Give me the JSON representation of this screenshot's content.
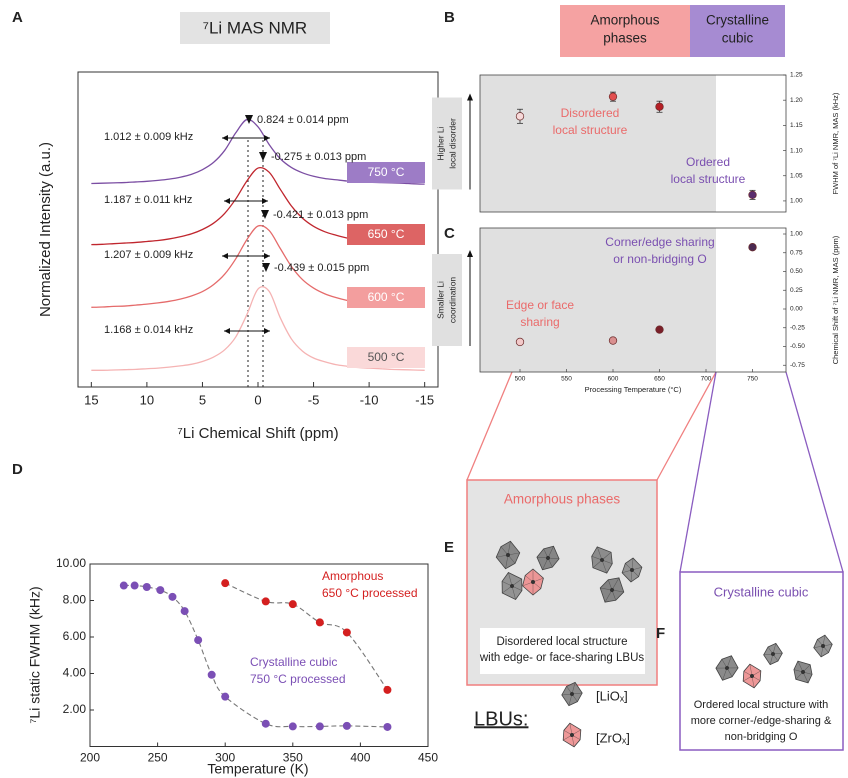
{
  "panel_labels": [
    "A",
    "B",
    "C",
    "D",
    "E",
    "F"
  ],
  "chart_data": [
    {
      "type": "line",
      "title": "⁷Li MAS NMR",
      "xlabel": "⁷Li Chemical Shift (ppm)",
      "ylabel": "Normalized Intensity (a.u.)",
      "x": [
        15,
        14,
        13,
        12,
        11,
        10,
        9,
        8,
        7,
        6,
        5,
        4,
        3,
        2,
        1,
        0,
        -1,
        -2,
        -3,
        -4,
        -5,
        -6,
        -7,
        -8,
        -9,
        -10,
        -11,
        -12,
        -13,
        -14,
        -15
      ],
      "xlim": [
        16.2,
        -16.2
      ],
      "xticks": [
        15,
        10,
        5,
        0,
        -5,
        -10,
        -15
      ],
      "ylim": [
        0,
        10
      ],
      "series": [
        {
          "name": "750 °C",
          "color": "#7b4ea3",
          "label_color": "#9d7cc6",
          "peak_label": "0.824 ± 0.014 ppm",
          "width_label": "1.012 ± 0.009 kHz",
          "values": [
            6.46,
            6.47,
            6.48,
            6.49,
            6.51,
            6.53,
            6.56,
            6.6,
            6.66,
            6.75,
            6.9,
            7.13,
            7.51,
            8.07,
            8.49,
            8.26,
            7.7,
            7.25,
            6.97,
            6.8,
            6.69,
            6.62,
            6.58,
            6.54,
            6.52,
            6.5,
            6.49,
            6.48,
            6.47,
            6.45,
            6.44
          ]
        },
        {
          "name": "650 °C",
          "color": "#c0262e",
          "label_color": "#dd6464",
          "peak_label": "-0.275 ± 0.013 ppm",
          "width_label": "1.187 ± 0.011 kHz",
          "values": [
            4.52,
            4.53,
            4.55,
            4.57,
            4.59,
            4.62,
            4.65,
            4.7,
            4.77,
            4.86,
            5.0,
            5.2,
            5.51,
            5.97,
            6.54,
            6.95,
            6.82,
            6.28,
            5.75,
            5.36,
            5.1,
            4.93,
            4.82,
            4.73,
            4.68,
            4.63,
            4.6,
            4.58,
            4.56,
            4.55,
            4.54
          ]
        },
        {
          "name": "600 °C",
          "color": "#e56b6b",
          "label_color": "#f39e9e",
          "peak_label": "-0.421 ± 0.013 ppm",
          "width_label": "1.207 ± 0.009 kHz",
          "values": [
            2.53,
            2.54,
            2.56,
            2.57,
            2.6,
            2.63,
            2.67,
            2.72,
            2.79,
            2.89,
            3.03,
            3.25,
            3.58,
            4.07,
            4.68,
            5.11,
            4.97,
            4.4,
            3.83,
            3.41,
            3.14,
            2.96,
            2.84,
            2.75,
            2.69,
            2.65,
            2.61,
            2.59,
            2.56,
            2.55,
            2.53
          ]
        },
        {
          "name": "500 °C",
          "color": "#f5b3b3",
          "label_color": "#fad9d9",
          "peak_label": "-0.439 ± 0.015 ppm",
          "width_label": "1.168 ± 0.014 kHz",
          "values": [
            0.53,
            0.53,
            0.54,
            0.55,
            0.56,
            0.58,
            0.6,
            0.63,
            0.67,
            0.72,
            0.81,
            0.95,
            1.18,
            1.59,
            2.3,
            3.11,
            3.04,
            2.2,
            1.53,
            1.14,
            0.92,
            0.8,
            0.71,
            0.66,
            0.62,
            0.6,
            0.58,
            0.56,
            0.55,
            0.54,
            0.53
          ]
        }
      ]
    },
    {
      "type": "scatter",
      "ylabel": "FWHM of ⁷Li NMR, MAS (kHz)",
      "side_label": [
        "Higher Li",
        "local disorder"
      ],
      "phase_header": [
        [
          "Amorphous",
          "phases"
        ],
        [
          "Crystalline",
          "cubic"
        ]
      ],
      "annotations": [
        [
          "Disordered",
          "local structure"
        ],
        [
          "Ordered",
          "local structure"
        ]
      ],
      "x": [
        500,
        600,
        650,
        750
      ],
      "values": [
        1.168,
        1.207,
        1.187,
        1.012
      ],
      "errors": [
        0.014,
        0.009,
        0.011,
        0.009
      ],
      "colors": [
        "#f7d9d9",
        "#e24f4f",
        "#b51f26",
        "#5a2d6e"
      ],
      "xlim": [
        457,
        786
      ],
      "ylim": [
        0.978,
        1.25
      ],
      "yticks": [
        {
          "value": 1.0,
          "label": "1.00"
        },
        {
          "value": 1.05,
          "label": "1.05"
        },
        {
          "value": 1.1,
          "label": "1.10"
        },
        {
          "value": 1.15,
          "label": "1.15"
        },
        {
          "value": 1.2,
          "label": "1.20"
        },
        {
          "value": 1.25,
          "label": "1.25"
        }
      ]
    },
    {
      "type": "scatter",
      "ylabel": "Chemical Shift of ⁷Li NMR, MAS (ppm)",
      "xlabel": "Processing Temperature (°C)",
      "side_label": [
        "Smaller Li",
        "coordination"
      ],
      "annotations": [
        [
          "Corner/edge sharing",
          "or non-bridging O"
        ],
        [
          "Edge or face",
          "sharing"
        ]
      ],
      "x": [
        500,
        600,
        650,
        750
      ],
      "values": [
        -0.439,
        -0.421,
        -0.275,
        0.824
      ],
      "colors": [
        "#f2c9c9",
        "#d99090",
        "#7a1f29",
        "#4b2a52"
      ],
      "xlim": [
        457,
        786
      ],
      "ylim": [
        -0.84,
        1.08
      ],
      "xticks": [
        500,
        550,
        600,
        650,
        700,
        750
      ],
      "yticks": [
        {
          "value": 1.0,
          "label": "1.00"
        },
        {
          "value": 0.75,
          "label": "0.75"
        },
        {
          "value": 0.5,
          "label": "0.50"
        },
        {
          "value": 0.25,
          "label": "0.25"
        },
        {
          "value": 0.0,
          "label": "0.00"
        },
        {
          "value": -0.25,
          "label": "-0.25"
        },
        {
          "value": -0.5,
          "label": "-0.50"
        },
        {
          "value": -0.75,
          "label": "-0.75"
        }
      ]
    },
    {
      "type": "scatter",
      "xlabel": "Temperature (K)",
      "ylabel": "⁷Li static FWHM (kHz)",
      "xlim": [
        200,
        450
      ],
      "xticks": [
        200,
        250,
        300,
        350,
        400,
        450
      ],
      "ylim": [
        0,
        10
      ],
      "yticks": [
        {
          "value": 2,
          "label": "2.00"
        },
        {
          "value": 4,
          "label": "4.00"
        },
        {
          "value": 6,
          "label": "6.00"
        },
        {
          "value": 8,
          "label": "8.00"
        },
        {
          "value": 10,
          "label": "10.00"
        }
      ],
      "series": [
        {
          "label": [
            "Amorphous",
            "650 °C processed"
          ],
          "color": "#d41f1f",
          "x": [
            300,
            330,
            350,
            370,
            390,
            420
          ],
          "values": [
            8.95,
            7.95,
            7.8,
            6.8,
            6.25,
            3.1
          ]
        },
        {
          "label": [
            "Crystalline cubic",
            "750 °C processed"
          ],
          "color": "#7b4fb5",
          "x": [
            225,
            233,
            242,
            252,
            261,
            270,
            280,
            290,
            300,
            330,
            350,
            370,
            390,
            420
          ],
          "values": [
            8.82,
            8.82,
            8.74,
            8.57,
            8.2,
            7.42,
            5.83,
            3.93,
            2.73,
            1.25,
            1.1,
            1.1,
            1.13,
            1.07
          ]
        }
      ]
    }
  ],
  "diagrams": {
    "amorphous": {
      "title": "Amorphous phases",
      "caption": [
        "Disordered local structure",
        "with edge- or face-sharing LBUs"
      ]
    },
    "crystalline": {
      "title": "Crystalline cubic",
      "caption": [
        "Ordered local structure with",
        "more corner-/edge-sharing &",
        "non-bridging O"
      ]
    },
    "legend": {
      "title": "LBUs:",
      "items": [
        "[LiOₓ]",
        "[ZrOₓ]"
      ]
    }
  }
}
